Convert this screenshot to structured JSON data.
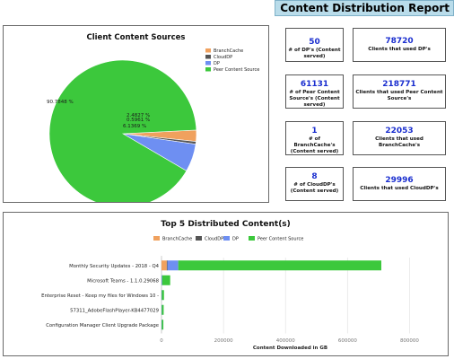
{
  "report": {
    "title": "Content Distribution Report"
  },
  "stats": [
    {
      "left": {
        "value": "50",
        "label": "# of DP's (Content served)"
      },
      "right": {
        "value": "78720",
        "label": "Clients that used DP's"
      }
    },
    {
      "left": {
        "value": "61131",
        "label": "# of Peer Content Source's (Content served)"
      },
      "right": {
        "value": "218771",
        "label": "Clients that used Peer Content Source's"
      }
    },
    {
      "left": {
        "value": "1",
        "label": "# of BranchCache's (Content served)"
      },
      "right": {
        "value": "22053",
        "label": "Clients that used BranchCache's"
      }
    },
    {
      "left": {
        "value": "8",
        "label": "# of CloudDP's (Content served)"
      },
      "right": {
        "value": "29996",
        "label": "Clients that used CloudDP's"
      }
    }
  ],
  "colors": {
    "BranchCache": "#f0a15e",
    "CloudDP": "#555555",
    "DP": "#6e8ff2",
    "PeerContentSource": "#3cc83c"
  },
  "chart_data": [
    {
      "type": "pie",
      "title": "Client Content Sources",
      "legend_position": "right",
      "slices": [
        {
          "name": "BranchCache",
          "value": 2.4827,
          "label": "2.4827 %"
        },
        {
          "name": "CloudDP",
          "value": 0.5961,
          "label": "0.5961 %"
        },
        {
          "name": "DP",
          "value": 6.1369,
          "label": "6.1369 %"
        },
        {
          "name": "Peer Content Source",
          "value": 90.7848,
          "label": "90.7848 %"
        }
      ]
    },
    {
      "type": "bar",
      "orientation": "horizontal",
      "stacked": true,
      "title": "Top 5 Distributed Content(s)",
      "xlabel": "Content Downloaded in GB",
      "ylabel": "",
      "xlim": [
        0,
        900000
      ],
      "xticks": [
        "0",
        "200000",
        "400000",
        "600000",
        "800000"
      ],
      "legend_position": "top",
      "grid": true,
      "categories": [
        "Monthly Security Updates - 2018 - Q4",
        "Microsoft Teams - 1.1.0.29068",
        "Enterprise Reset - Keep my files for Windows 10 -",
        "57311_AdobeFlashPlayer-KB4477029",
        "Configuration Manager Client Upgrade Package"
      ],
      "series": [
        {
          "name": "BranchCache",
          "values": [
            17000,
            0,
            0,
            0,
            0
          ]
        },
        {
          "name": "CloudDP",
          "values": [
            2000,
            0,
            0,
            0,
            0
          ]
        },
        {
          "name": "DP",
          "values": [
            35000,
            2000,
            1000,
            1000,
            1000
          ]
        },
        {
          "name": "Peer Content Source",
          "values": [
            655000,
            26000,
            7000,
            6000,
            5000
          ]
        }
      ]
    }
  ]
}
